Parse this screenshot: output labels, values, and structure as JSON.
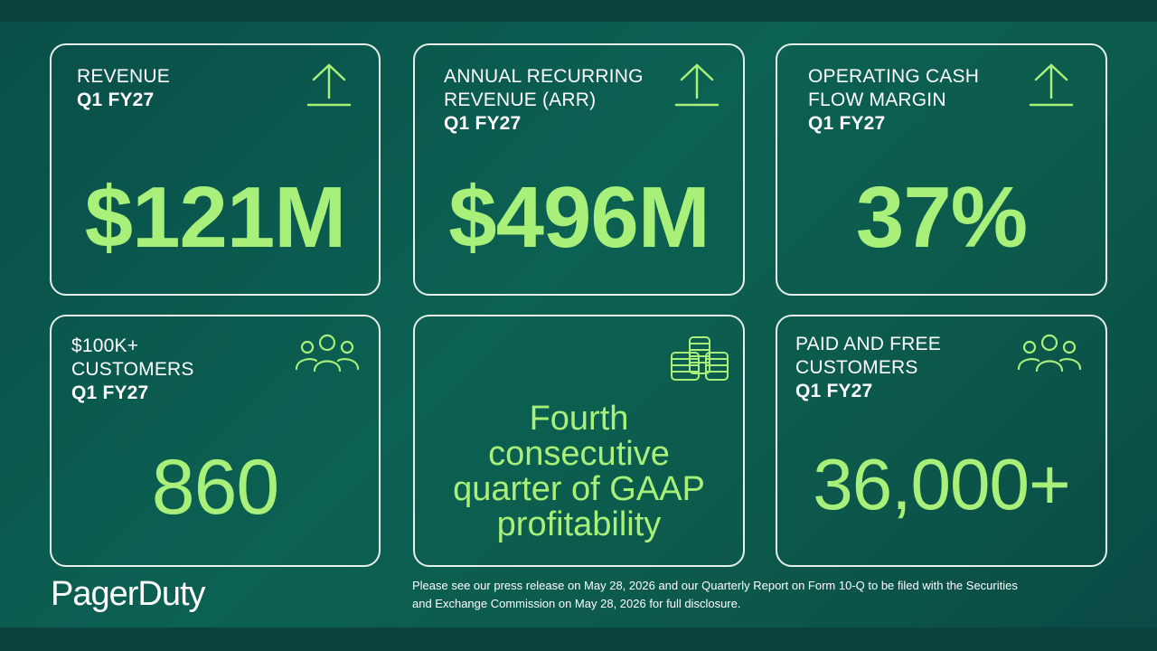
{
  "cards": [
    {
      "label": [
        "REVENUE"
      ],
      "period": "Q1 FY27",
      "value": "$121M",
      "icon": "arrow-up-icon"
    },
    {
      "label": [
        "ANNUAL RECURRING",
        "REVENUE (ARR)"
      ],
      "period": "Q1 FY27",
      "value": "$496M",
      "icon": "arrow-up-icon"
    },
    {
      "label": [
        "OPERATING CASH",
        "FLOW MARGIN"
      ],
      "period": "Q1 FY27",
      "value": "37%",
      "icon": "arrow-up-icon"
    },
    {
      "label": [
        "$100K+",
        "CUSTOMERS"
      ],
      "period": "Q1 FY27",
      "value": "860",
      "icon": "people-group-icon"
    },
    {
      "statement": [
        "Fourth",
        "consecutive",
        "quarter of GAAP",
        "profitability"
      ],
      "icon": "coin-stack-icon"
    },
    {
      "label": [
        "PAID AND FREE",
        "CUSTOMERS"
      ],
      "period": "Q1 FY27",
      "value": "36,000+",
      "icon": "people-group-icon"
    }
  ],
  "brand": {
    "logo": "PagerDuty"
  },
  "footer": {
    "disclaimer_line1": "Please see our press release on May 28, 2026 and our Quarterly Report on Form 10-Q to be filed with the Securities",
    "disclaimer_line2": "and Exchange Commission on May 28, 2026 for full disclosure."
  },
  "colors": {
    "accent": "#a8f07a",
    "background": "#0b5a4f",
    "border": "#e6efe9",
    "text": "#ffffff"
  }
}
